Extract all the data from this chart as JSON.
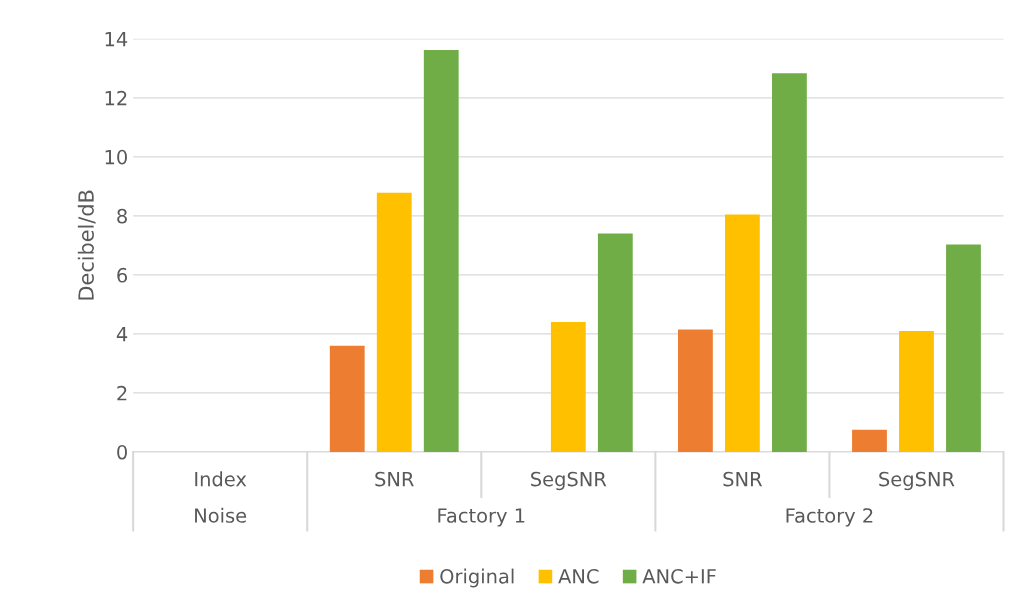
{
  "chart_data": {
    "type": "bar",
    "ylabel": "Decibel/dB",
    "categories": [
      "Index",
      "SNR",
      "SegSNR",
      "SNR",
      "SegSNR"
    ],
    "annotations": [
      "Noise",
      "Factory 1",
      "Factory 2"
    ],
    "series": [
      {
        "name": "Original",
        "color": "#ed7d31",
        "values": [
          null,
          3.6,
          null,
          4.15,
          0.75
        ]
      },
      {
        "name": "ANC",
        "color": "#ffc000",
        "values": [
          null,
          8.78,
          4.4,
          8.05,
          4.1
        ]
      },
      {
        "name": "ANC+IF",
        "color": "#70ad47",
        "values": [
          null,
          13.62,
          7.4,
          12.83,
          7.03
        ]
      }
    ],
    "ylim": [
      0,
      14
    ],
    "yticks": [
      0,
      2,
      4,
      6,
      8,
      10,
      12,
      14
    ],
    "grid": "y",
    "legend": "bottom"
  }
}
